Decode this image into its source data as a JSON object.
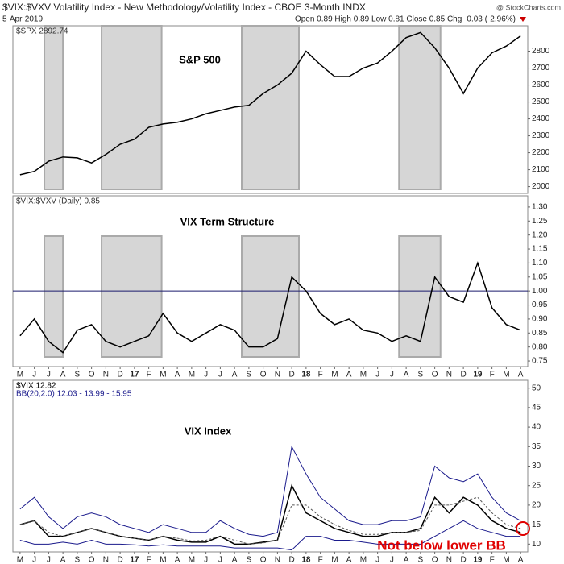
{
  "header": {
    "title": "$VIX:$VXV Volatility Index - New Methodology/Volatility Index - CBOE 3-Month INDX",
    "date": "5-Apr-2019",
    "quote": "Open 0.89 High 0.89 Low 0.81 Close 0.85 Chg -0.03 (-2.96%)",
    "source": "@ StockCharts.com"
  },
  "chart_data": [
    {
      "type": "line",
      "legend": "$SPX 2892.74",
      "annotation": "S&P 500",
      "color": "#000000",
      "values": [
        2070,
        2090,
        2150,
        2175,
        2170,
        2140,
        2190,
        2250,
        2280,
        2350,
        2370,
        2380,
        2400,
        2430,
        2450,
        2470,
        2480,
        2550,
        2600,
        2670,
        2800,
        2720,
        2650,
        2650,
        2700,
        2730,
        2800,
        2880,
        2910,
        2820,
        2700,
        2550,
        2700,
        2790,
        2830,
        2890
      ],
      "ylim": [
        1960,
        2950
      ],
      "yticks": [
        2000,
        2100,
        2200,
        2300,
        2400,
        2500,
        2600,
        2700,
        2800
      ]
    },
    {
      "type": "line",
      "legend": "$VIX:$VXV (Daily) 0.85",
      "annotation": "VIX Term Structure",
      "color": "#000000",
      "hline": 1,
      "categories": [
        "M",
        "J",
        "J",
        "A",
        "S",
        "O",
        "N",
        "D",
        "17",
        "F",
        "M",
        "A",
        "M",
        "J",
        "J",
        "A",
        "S",
        "O",
        "N",
        "D",
        "18",
        "F",
        "M",
        "A",
        "M",
        "J",
        "J",
        "A",
        "S",
        "O",
        "N",
        "D",
        "19",
        "F",
        "M",
        "A"
      ],
      "values": [
        0.84,
        0.9,
        0.82,
        0.78,
        0.86,
        0.88,
        0.82,
        0.8,
        0.82,
        0.84,
        0.92,
        0.85,
        0.82,
        0.85,
        0.88,
        0.86,
        0.8,
        0.8,
        0.83,
        1.05,
        1.0,
        0.92,
        0.88,
        0.9,
        0.86,
        0.85,
        0.82,
        0.84,
        0.82,
        1.05,
        0.98,
        0.96,
        1.1,
        0.94,
        0.88,
        0.86
      ],
      "ylim": [
        0.73,
        1.34
      ],
      "yticks": [
        0.75,
        {
          "value": 0.8,
          "label": "0.80"
        },
        0.85,
        {
          "value": 0.9,
          "label": "0.90"
        },
        0.95,
        {
          "value": 1,
          "label": "1.00"
        },
        1.05,
        {
          "value": 1.1,
          "label": "1.10"
        },
        1.15,
        {
          "value": 1.2,
          "label": "1.20"
        },
        1.25,
        {
          "value": 1.3,
          "label": "1.30"
        }
      ]
    },
    {
      "type": "line",
      "annotation": "VIX Index",
      "note": "Not below lower BB",
      "categories": [
        "M",
        "J",
        "J",
        "A",
        "S",
        "O",
        "N",
        "D",
        "17",
        "F",
        "M",
        "A",
        "M",
        "J",
        "J",
        "A",
        "S",
        "O",
        "N",
        "D",
        "18",
        "F",
        "M",
        "A",
        "M",
        "J",
        "J",
        "A",
        "S",
        "O",
        "N",
        "D",
        "19",
        "F",
        "M",
        "A"
      ],
      "series": [
        {
          "name": "$VIX 12.82",
          "color": "#000000",
          "values": [
            15,
            16,
            12,
            12,
            13,
            14,
            13,
            12,
            11.5,
            11,
            12,
            11,
            10.5,
            10.5,
            12,
            10,
            10,
            10.5,
            11,
            25,
            18,
            16,
            14,
            13,
            12,
            12,
            13,
            13,
            14,
            22,
            18,
            22,
            20,
            16,
            14,
            13
          ]
        },
        {
          "name": "BB(20,2.0) 12.03 - 13.99 - 15.95",
          "color": "#1a1a8c",
          "values": [
            19,
            22,
            17,
            14,
            17,
            18,
            17,
            15,
            14,
            13,
            15,
            14,
            13,
            13,
            16,
            14,
            12.5,
            12,
            13,
            35,
            28,
            22,
            19,
            16,
            15,
            15,
            16,
            16,
            17,
            30,
            27,
            26,
            28,
            22,
            18,
            16
          ]
        },
        {
          "color": "#555555",
          "values": [
            15,
            16,
            13,
            12,
            13,
            14,
            13,
            12,
            11.5,
            11,
            12,
            11.5,
            10.8,
            11,
            12,
            11,
            10,
            10.3,
            11,
            20,
            20,
            17,
            15,
            13.5,
            12.5,
            12.5,
            13,
            13,
            13.5,
            20,
            20,
            21,
            22,
            18,
            15,
            14
          ]
        },
        {
          "color": "#1a1a8c",
          "values": [
            11,
            10,
            10,
            10.5,
            10,
            11,
            10,
            10,
            9.8,
            9.5,
            9.8,
            9.5,
            9.5,
            9.5,
            9.5,
            9,
            9,
            9,
            9,
            8.5,
            12,
            12,
            11,
            11,
            10.5,
            10,
            10,
            10,
            10,
            12,
            14,
            16,
            14,
            13,
            12,
            12
          ]
        }
      ],
      "ylim": [
        8,
        52
      ],
      "yticks": [
        10,
        15,
        20,
        25,
        30,
        35,
        40,
        45,
        50
      ]
    }
  ]
}
